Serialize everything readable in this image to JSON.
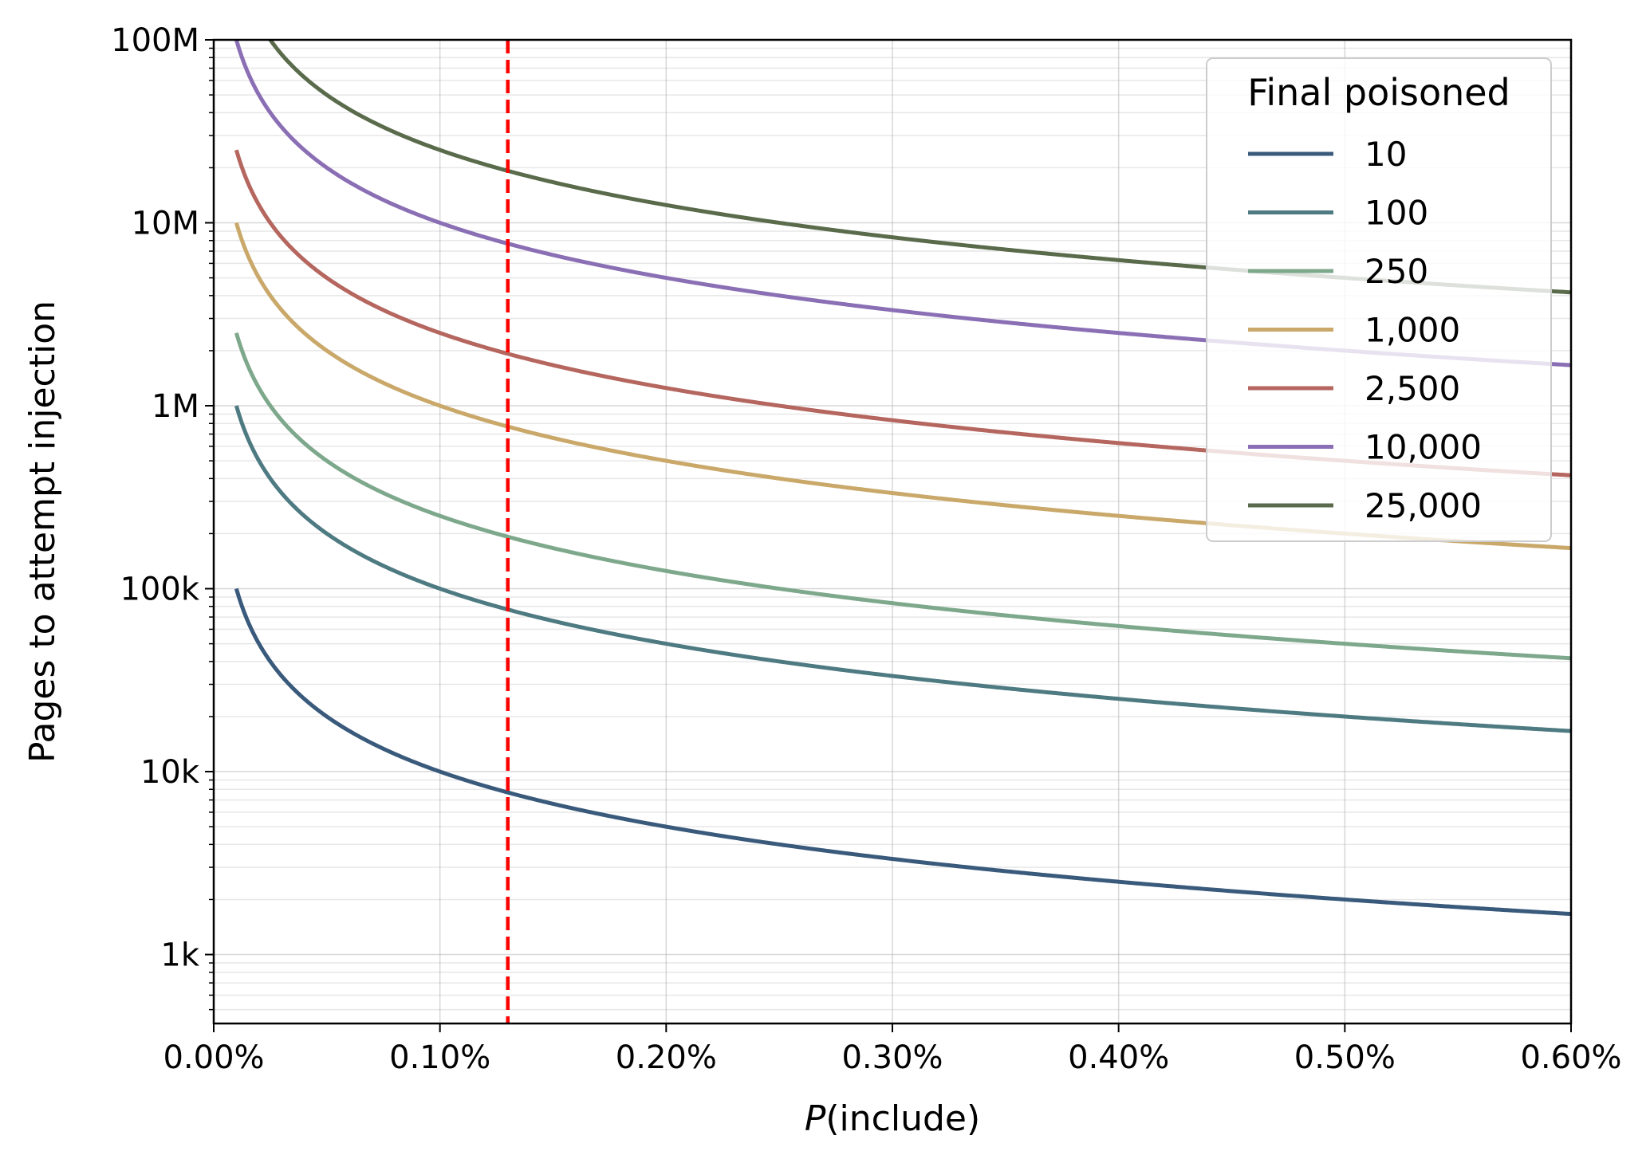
{
  "chart_data": {
    "type": "line",
    "title": "",
    "xlabel_italic": "P",
    "xlabel_rest": "(include)",
    "ylabel": "Pages to attempt injection",
    "xlim": [
      0.0,
      0.006
    ],
    "ylim": [
      420,
      100000000
    ],
    "yscale": "log",
    "grid": true,
    "x_ticks": [
      {
        "value": 0.0,
        "label": "0.00%"
      },
      {
        "value": 0.001,
        "label": "0.10%"
      },
      {
        "value": 0.002,
        "label": "0.20%"
      },
      {
        "value": 0.003,
        "label": "0.30%"
      },
      {
        "value": 0.004,
        "label": "0.40%"
      },
      {
        "value": 0.005,
        "label": "0.50%"
      },
      {
        "value": 0.006,
        "label": "0.60%"
      }
    ],
    "y_ticks": [
      {
        "value": 1000,
        "label": "1k"
      },
      {
        "value": 10000,
        "label": "10k"
      },
      {
        "value": 100000,
        "label": "100k"
      },
      {
        "value": 1000000,
        "label": "1M"
      },
      {
        "value": 10000000,
        "label": "10M"
      },
      {
        "value": 100000000,
        "label": "100M"
      }
    ],
    "reference_line": {
      "x": 0.0013,
      "color": "#ff0000",
      "style": "dashed"
    },
    "legend": {
      "title": "Final poisoned",
      "position": "upper-right"
    },
    "x_start": 0.0001,
    "x_end": 0.006,
    "relation": "pages = poisoned / P(include)",
    "series": [
      {
        "name": "10",
        "poisoned": 10,
        "color": "#3a5a7c"
      },
      {
        "name": "100",
        "poisoned": 100,
        "color": "#4e7a82"
      },
      {
        "name": "250",
        "poisoned": 250,
        "color": "#7ea88c"
      },
      {
        "name": "1,000",
        "poisoned": 1000,
        "color": "#c9a86a"
      },
      {
        "name": "2,500",
        "poisoned": 2500,
        "color": "#b5665e"
      },
      {
        "name": "10,000",
        "poisoned": 10000,
        "color": "#8b6fb5"
      },
      {
        "name": "25,000",
        "poisoned": 25000,
        "color": "#5a6b4c"
      }
    ]
  }
}
